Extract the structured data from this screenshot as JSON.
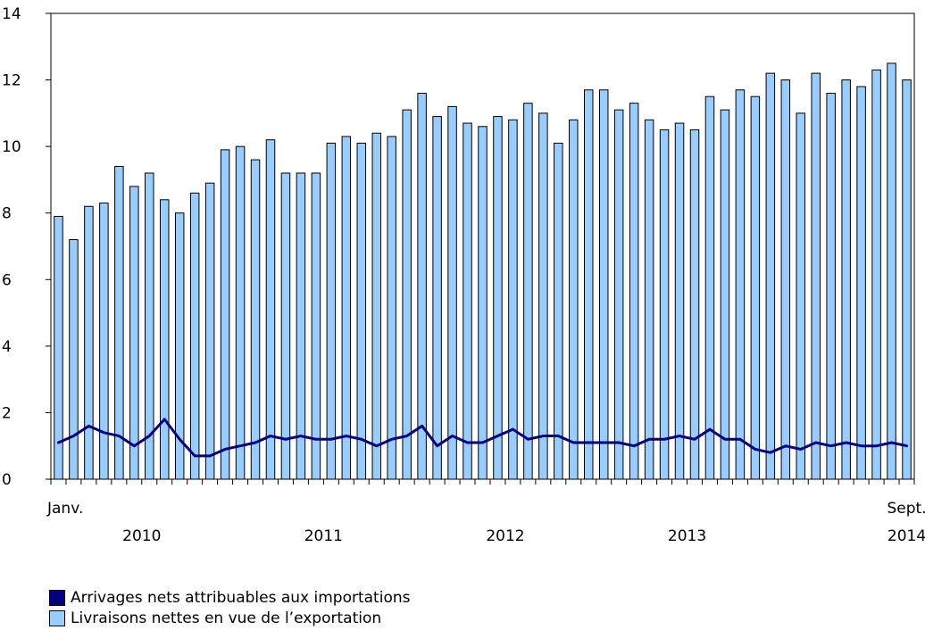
{
  "chart_data": {
    "type": "bar",
    "title": "",
    "xlabel": "",
    "ylabel": "",
    "ylim": [
      0,
      14
    ],
    "yticks": [
      0,
      2,
      4,
      6,
      8,
      10,
      12,
      14
    ],
    "grid": false,
    "x_tick_labels": {
      "start": "Janv.",
      "end": "Sept."
    },
    "years": [
      "2010",
      "2011",
      "2012",
      "2013",
      "2014"
    ],
    "legend_position": "bottom-left",
    "series": [
      {
        "name": "Arrivages nets attribuables aux importations",
        "type": "line",
        "color": "#000080",
        "values": [
          1.1,
          1.3,
          1.6,
          1.4,
          1.3,
          1.0,
          1.3,
          1.8,
          1.2,
          0.7,
          0.7,
          0.9,
          1.0,
          1.1,
          1.3,
          1.2,
          1.3,
          1.2,
          1.2,
          1.3,
          1.2,
          1.0,
          1.2,
          1.3,
          1.6,
          1.0,
          1.3,
          1.1,
          1.1,
          1.3,
          1.5,
          1.2,
          1.3,
          1.3,
          1.1,
          1.1,
          1.1,
          1.1,
          1.0,
          1.2,
          1.2,
          1.3,
          1.2,
          1.5,
          1.2,
          1.2,
          0.9,
          0.8,
          1.0,
          0.9,
          1.1,
          1.0,
          1.1,
          1.0,
          1.0,
          1.1,
          1.0
        ]
      },
      {
        "name": "Livraisons nettes en vue de l’exportation",
        "type": "bar",
        "color": "#99ccff",
        "values": [
          7.9,
          7.2,
          8.2,
          8.3,
          9.4,
          8.8,
          9.2,
          8.4,
          8.0,
          8.6,
          8.9,
          9.9,
          10.0,
          9.6,
          10.2,
          9.2,
          9.2,
          9.2,
          10.1,
          10.3,
          10.1,
          10.4,
          10.3,
          11.1,
          11.6,
          10.9,
          11.2,
          10.7,
          10.6,
          10.9,
          10.8,
          11.3,
          11.0,
          10.1,
          10.8,
          11.7,
          11.7,
          11.1,
          11.3,
          10.8,
          10.5,
          10.7,
          10.5,
          11.5,
          11.1,
          11.7,
          11.5,
          12.2,
          12.0,
          11.0,
          12.2,
          11.6,
          12.0,
          11.8,
          12.3,
          12.5,
          12.0
        ]
      }
    ]
  }
}
